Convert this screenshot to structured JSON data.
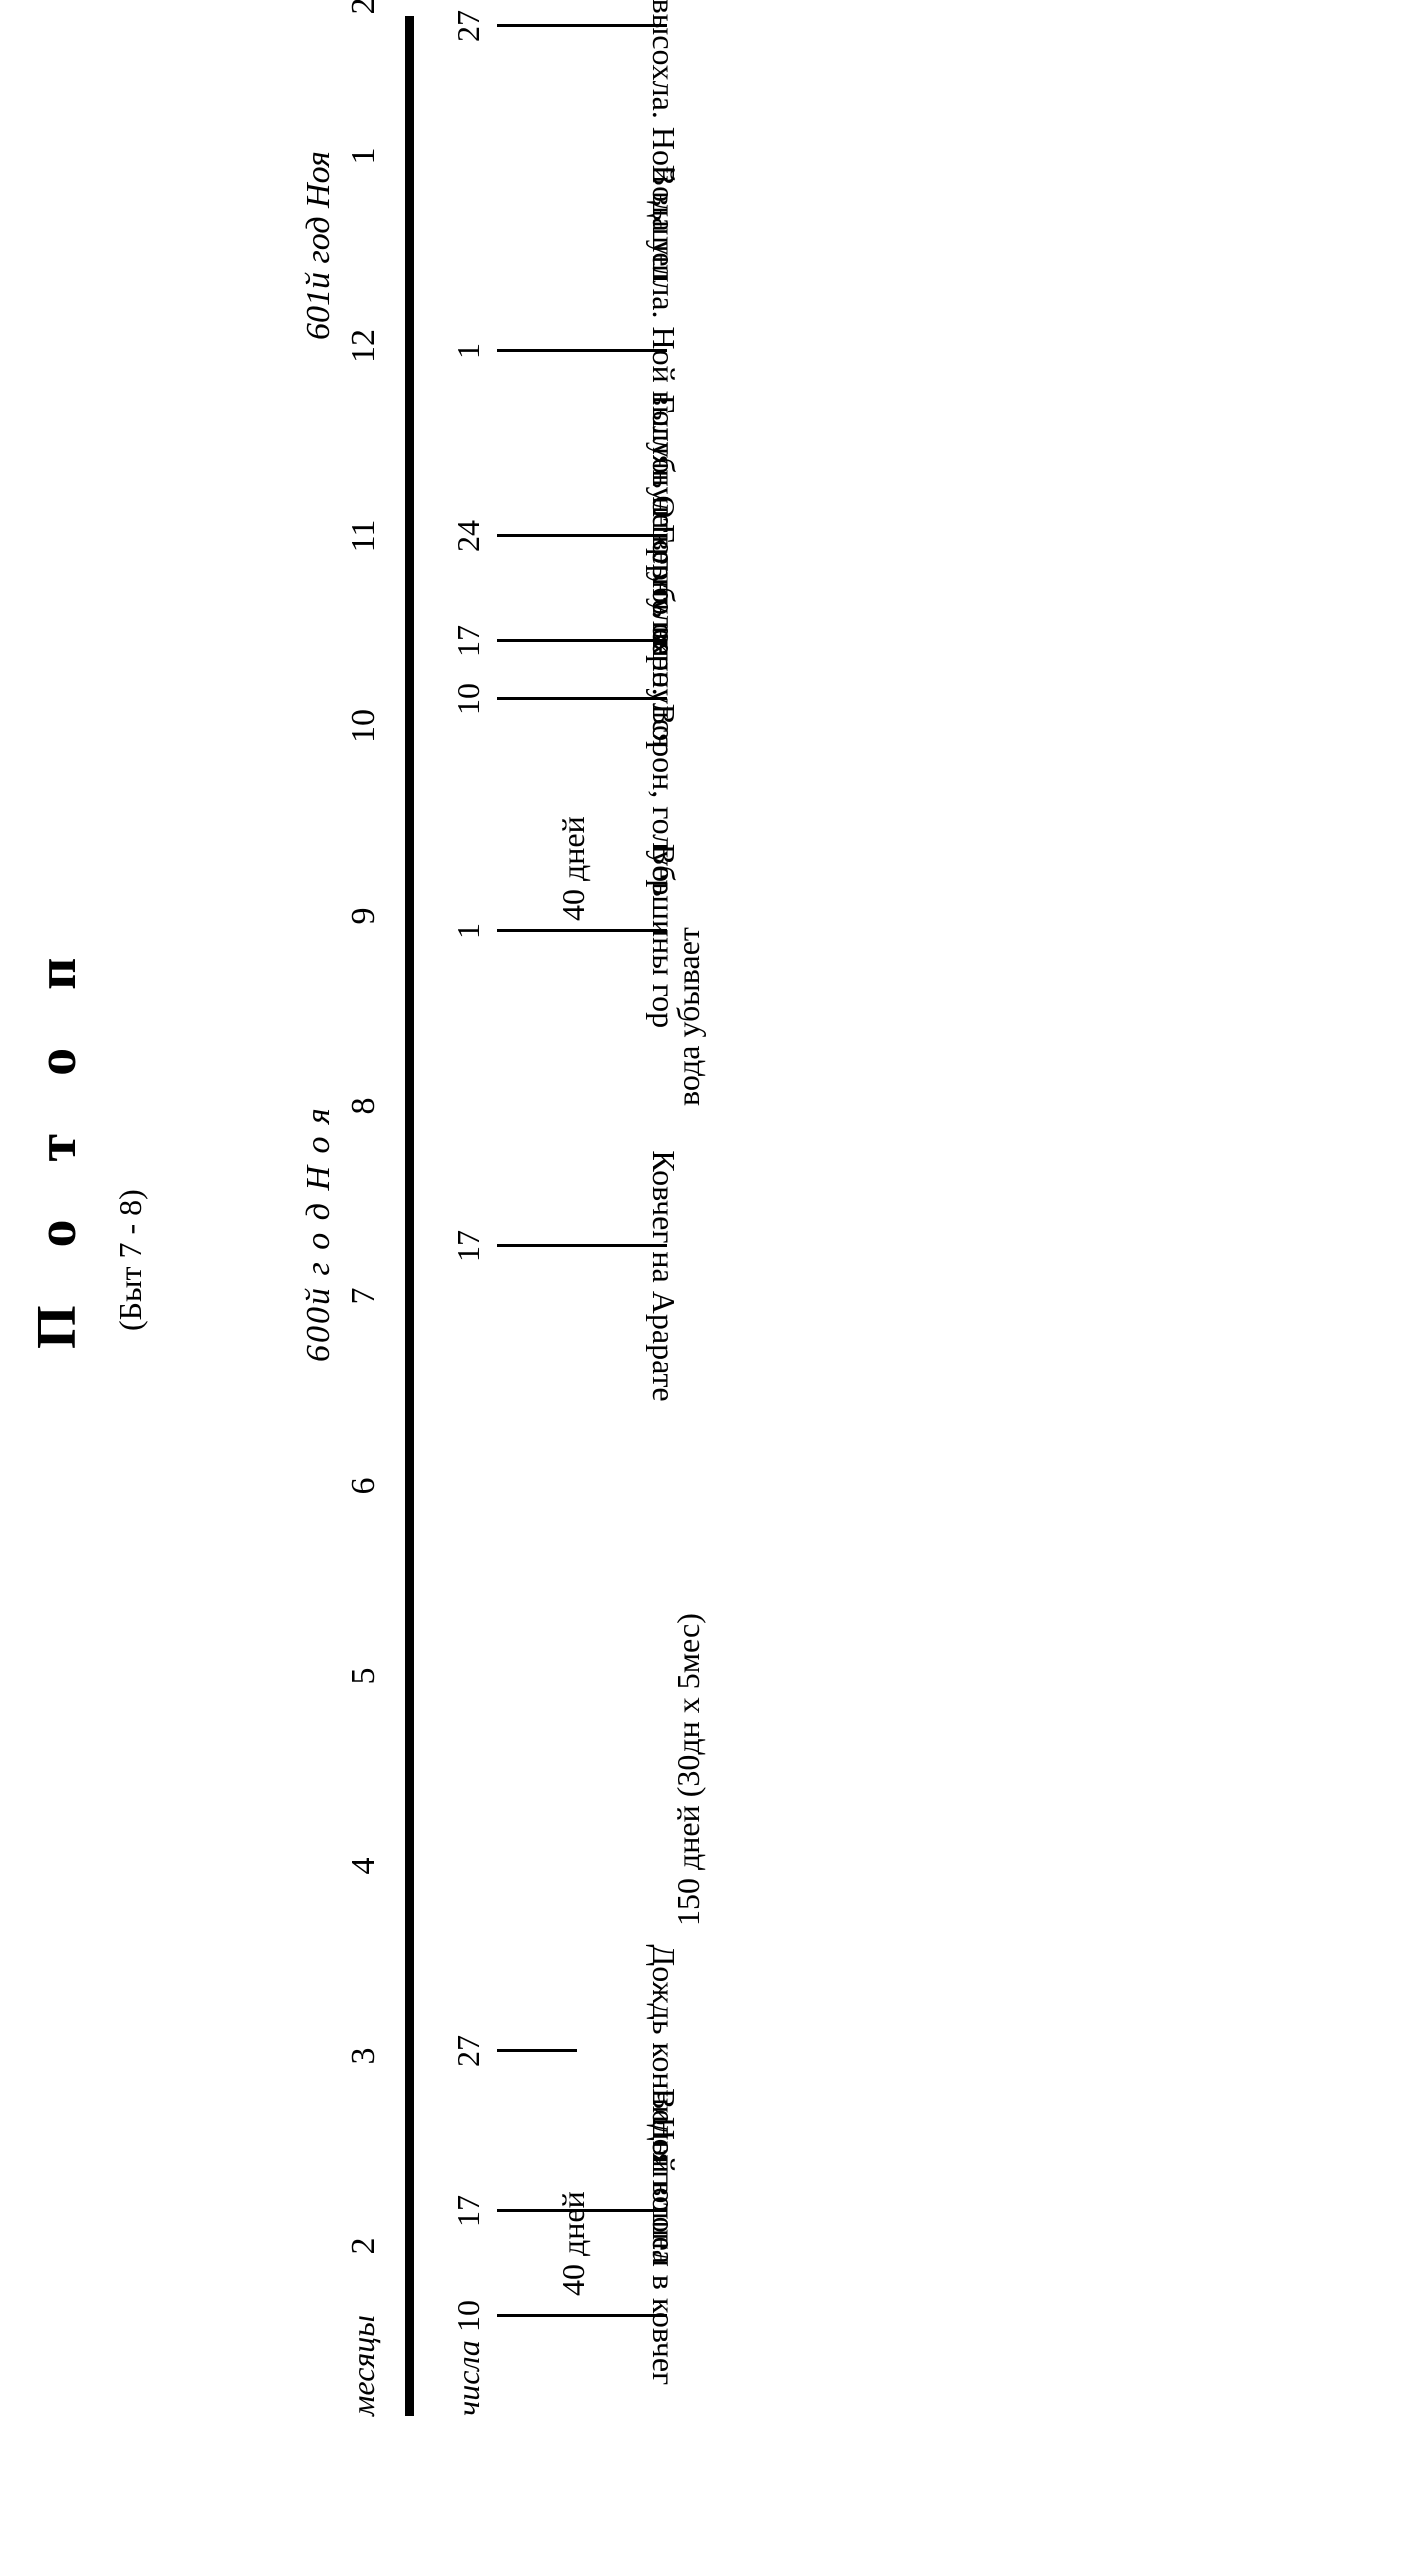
{
  "title": "П о т о п",
  "subtitle": "(Быт 7 - 8)",
  "year_labels": [
    {
      "text": "600й  г о д   Н о я"
    },
    {
      "text": "601й год Ноя"
    }
  ],
  "axis_labels": {
    "months": "месяцы",
    "days": "числа"
  },
  "months": [
    "2",
    "3",
    "4",
    "5",
    "6",
    "7",
    "8",
    "9",
    "10",
    "11",
    "12",
    "1",
    "2"
  ],
  "events": [
    {
      "day": "10",
      "label": "Ной вошел в ковчег"
    },
    {
      "day": "17",
      "label": "Воды потопа"
    },
    {
      "day": "27",
      "label": "Дождь кончился"
    },
    {
      "day": "17",
      "label": "Ковчег на Арарате"
    },
    {
      "day": "1",
      "label": "Вершины гор"
    },
    {
      "day": "10",
      "label": "Открыто окно. Ворон, голубь"
    },
    {
      "day": "17",
      "label": "Голубь вернулся"
    },
    {
      "day": "24",
      "label": "Голубь не вернулся"
    },
    {
      "day": "1",
      "label": "Вода ушла. Ной выглянул"
    },
    {
      "day": "27",
      "label": "Земля высохла. Ной вышел"
    }
  ],
  "spans": [
    {
      "text": "40 дней"
    },
    {
      "text": "150 дней (30дн x 5мес)"
    },
    {
      "text": "вода убывает"
    },
    {
      "text": "40 дней"
    }
  ]
}
